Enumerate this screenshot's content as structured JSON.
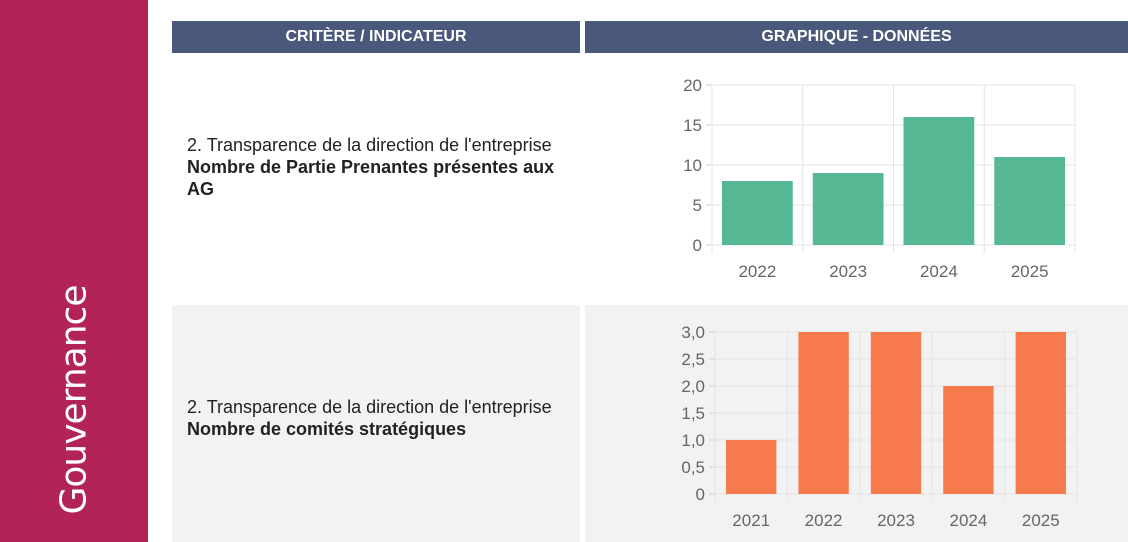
{
  "sidebar": {
    "label": "Gouvernance"
  },
  "header": {
    "criterion_label": "CRITÈRE / INDICATEUR",
    "chart_label": "GRAPHIQUE - DONNÉES"
  },
  "rows": [
    {
      "criterion_title": "2. Transparence de la direction de l'entreprise",
      "indicator": "Nombre de Partie Prenantes présentes aux AG"
    },
    {
      "criterion_title": "2. Transparence de la direction de l'entreprise",
      "indicator": "Nombre de comités stratégiques"
    }
  ],
  "chart_data": [
    {
      "type": "bar",
      "categories": [
        "2022",
        "2023",
        "2024",
        "2025"
      ],
      "values": [
        8,
        9,
        16,
        11
      ],
      "ylim": [
        0,
        20
      ],
      "yticks": [
        "0",
        "5",
        "10",
        "15",
        "20"
      ],
      "ytick_values": [
        0,
        5,
        10,
        15,
        20
      ],
      "color": "#55b893",
      "grid": true
    },
    {
      "type": "bar",
      "categories": [
        "2021",
        "2022",
        "2023",
        "2024",
        "2025"
      ],
      "values": [
        1,
        3,
        3,
        2,
        3
      ],
      "ylim": [
        0,
        3
      ],
      "yticks": [
        "0",
        "0,5",
        "1,0",
        "1,5",
        "2,0",
        "2,5",
        "3,0"
      ],
      "ytick_values": [
        0,
        0.5,
        1,
        1.5,
        2,
        2.5,
        3
      ],
      "color": "#f7794e",
      "grid": true
    }
  ]
}
